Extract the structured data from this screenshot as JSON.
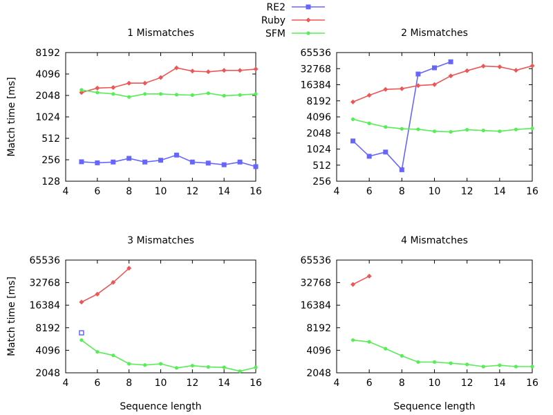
{
  "legend": [
    {
      "label": "RE2",
      "color": "#6666ff",
      "marker": "square"
    },
    {
      "label": "Ruby",
      "color": "#ee5555",
      "marker": "diamond"
    },
    {
      "label": "SFM",
      "color": "#55ee55",
      "marker": "circle"
    }
  ],
  "shared": {
    "ylabel": "Match time [ms]",
    "xlabel": "Sequence length",
    "y_scale": "log2",
    "x_ticks": [
      "4",
      "6",
      "8",
      "10",
      "12",
      "14",
      "16"
    ]
  },
  "chart_data": [
    {
      "type": "line",
      "title": "1 Mismatches",
      "xlim": [
        4,
        16
      ],
      "ylim": [
        128,
        8192
      ],
      "y_ticks": [
        128,
        256,
        512,
        1024,
        2048,
        4096,
        8192
      ],
      "series": [
        {
          "name": "RE2",
          "x": [
            5,
            6,
            7,
            8,
            9,
            10,
            11,
            12,
            13,
            14,
            15,
            16
          ],
          "y": [
            240,
            232,
            238,
            268,
            238,
            252,
            298,
            238,
            230,
            218,
            238,
            205
          ]
        },
        {
          "name": "Ruby",
          "x": [
            5,
            6,
            7,
            8,
            9,
            10,
            11,
            12,
            13,
            14,
            15,
            16
          ],
          "y": [
            2250,
            2600,
            2650,
            3050,
            3050,
            3650,
            5000,
            4500,
            4400,
            4600,
            4600,
            4800
          ]
        },
        {
          "name": "SFM",
          "x": [
            5,
            6,
            7,
            8,
            9,
            10,
            11,
            12,
            13,
            14,
            15,
            16
          ],
          "y": [
            2450,
            2250,
            2150,
            1950,
            2150,
            2150,
            2100,
            2070,
            2200,
            2030,
            2080,
            2150
          ]
        }
      ]
    },
    {
      "type": "line",
      "title": "2 Mismatches",
      "xlim": [
        4,
        16
      ],
      "ylim": [
        256,
        65536
      ],
      "y_ticks": [
        256,
        512,
        1024,
        2048,
        4096,
        8192,
        16384,
        32768,
        65536
      ],
      "series": [
        {
          "name": "RE2",
          "x": [
            5,
            6,
            7,
            8,
            9,
            10,
            11
          ],
          "y": [
            1450,
            750,
            900,
            420,
            26000,
            34000,
            44000
          ]
        },
        {
          "name": "Ruby",
          "x": [
            5,
            6,
            7,
            8,
            9,
            10,
            11,
            12,
            13,
            14,
            15,
            16
          ],
          "y": [
            7800,
            10400,
            13400,
            13800,
            15800,
            16500,
            24000,
            30000,
            36500,
            35500,
            30500,
            37000
          ]
        },
        {
          "name": "SFM",
          "x": [
            5,
            6,
            7,
            8,
            9,
            10,
            11,
            12,
            13,
            14,
            15,
            16
          ],
          "y": [
            3700,
            3100,
            2650,
            2450,
            2400,
            2200,
            2150,
            2350,
            2280,
            2200,
            2380,
            2500
          ]
        }
      ]
    },
    {
      "type": "line",
      "title": "3 Mismatches",
      "xlim": [
        4,
        16
      ],
      "ylim": [
        2048,
        65536
      ],
      "y_ticks": [
        2048,
        4096,
        8192,
        16384,
        32768,
        65536
      ],
      "series": [
        {
          "name": "RE2",
          "x": [
            5
          ],
          "y": [
            7000
          ]
        },
        {
          "name": "Ruby",
          "x": [
            5,
            6,
            7,
            8
          ],
          "y": [
            18000,
            23000,
            33000,
            51000
          ]
        },
        {
          "name": "SFM",
          "x": [
            5,
            6,
            7,
            8,
            9,
            10,
            11,
            12,
            13,
            14,
            15,
            16
          ],
          "y": [
            5600,
            3900,
            3500,
            2700,
            2600,
            2700,
            2380,
            2550,
            2450,
            2420,
            2150,
            2420
          ]
        }
      ]
    },
    {
      "type": "line",
      "title": "4 Mismatches",
      "xlim": [
        4,
        16
      ],
      "ylim": [
        2048,
        65536
      ],
      "y_ticks": [
        2048,
        4096,
        8192,
        16384,
        32768,
        65536
      ],
      "series": [
        {
          "name": "RE2",
          "x": [],
          "y": []
        },
        {
          "name": "Ruby",
          "x": [
            5,
            6
          ],
          "y": [
            31000,
            40000
          ]
        },
        {
          "name": "SFM",
          "x": [
            5,
            6,
            7,
            8,
            9,
            10,
            11,
            12,
            13,
            14,
            15,
            16
          ],
          "y": [
            5600,
            5300,
            4300,
            3450,
            2850,
            2850,
            2750,
            2650,
            2480,
            2580,
            2480,
            2480
          ]
        }
      ]
    }
  ]
}
